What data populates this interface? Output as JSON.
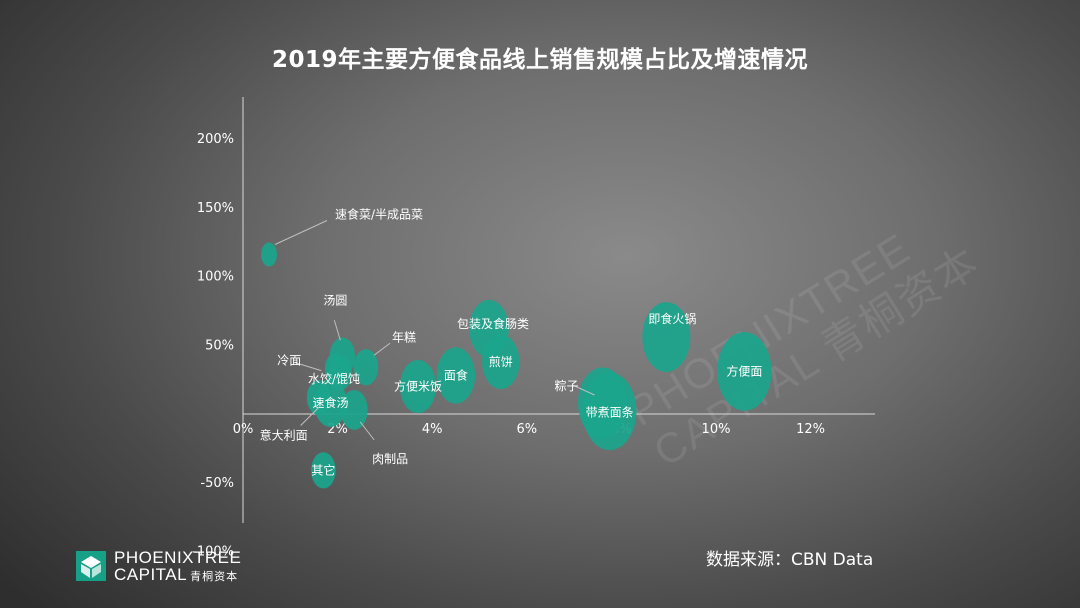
{
  "title": "2019年主要方便食品线上销售规模占比及增速情况",
  "source": "数据来源：CBN Data",
  "logo": {
    "line1": "PHOENIXTREE",
    "line2": "CAPITAL",
    "cn": "青桐资本"
  },
  "watermark": {
    "line1": "PHOENIXTREE",
    "line2": "CAPITAL 青桐资本"
  },
  "colors": {
    "bubble": "#1aa58c",
    "text": "#ffffff",
    "axis": "#d9d9d9",
    "callout": "#bfbfbf"
  },
  "chart_data": {
    "type": "scatter",
    "subtype": "bubble",
    "title": "2019年主要方便食品线上销售规模占比及增速情况",
    "x_ticks": [
      "0%",
      "2%",
      "4%",
      "6%",
      "8%",
      "10%",
      "12%"
    ],
    "y_ticks": [
      "-100%",
      "-50%",
      "50%",
      "100%",
      "150%",
      "200%"
    ],
    "xlim": [
      -0.2,
      13.9
    ],
    "ylim": [
      -100,
      232
    ],
    "points": [
      {
        "label": "速食菜/半成品菜",
        "x": 0.55,
        "y": 116,
        "size": 0.25
      },
      {
        "label": "汤圆",
        "x": 2.1,
        "y": 42,
        "size": 0.7
      },
      {
        "label": "年糕",
        "x": 2.6,
        "y": 34,
        "size": 0.65
      },
      {
        "label": "冷面",
        "x": 1.95,
        "y": 33,
        "size": 0.45
      },
      {
        "label": "水饺/馄饨",
        "x": 2.05,
        "y": 30,
        "size": 0.6
      },
      {
        "label": "速食汤",
        "x": 1.85,
        "y": 8,
        "size": 1.2
      },
      {
        "label": "意大利面",
        "x": 1.6,
        "y": 12,
        "size": 0.6
      },
      {
        "label": "肉制品",
        "x": 2.35,
        "y": 3,
        "size": 0.8
      },
      {
        "label": "其它",
        "x": 1.7,
        "y": -41,
        "size": 0.65
      },
      {
        "label": "方便米饭",
        "x": 3.7,
        "y": 20,
        "size": 1.5
      },
      {
        "label": "面食",
        "x": 4.5,
        "y": 28,
        "size": 1.7
      },
      {
        "label": "包装及食肠类",
        "x": 5.2,
        "y": 62,
        "size": 1.8
      },
      {
        "label": "煎饼",
        "x": 5.45,
        "y": 38,
        "size": 1.6
      },
      {
        "label": "粽子",
        "x": 7.6,
        "y": 8,
        "size": 2.8
      },
      {
        "label": "带煮面条",
        "x": 7.75,
        "y": 2,
        "size": 3.4
      },
      {
        "label": "即食火锅",
        "x": 8.95,
        "y": 56,
        "size": 2.7
      },
      {
        "label": "方便面",
        "x": 10.6,
        "y": 31,
        "size": 3.5
      }
    ]
  }
}
